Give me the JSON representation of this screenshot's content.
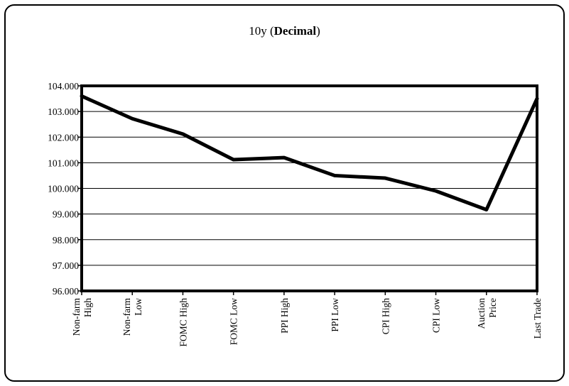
{
  "chart_data": {
    "type": "line",
    "title_prefix": "10y (",
    "title_bold": "Decimal",
    "title_suffix": ")",
    "categories": [
      [
        "Non-farm",
        "High"
      ],
      [
        "Non-farm",
        "Low"
      ],
      [
        "FOMC High"
      ],
      [
        "FOMC Low"
      ],
      [
        "PPI High"
      ],
      [
        "PPI Low"
      ],
      [
        "CPI High"
      ],
      [
        "CPI Low"
      ],
      [
        "Auction",
        "Price"
      ],
      [
        "Last Trade"
      ]
    ],
    "values": [
      103.6,
      102.72,
      102.12,
      101.12,
      101.2,
      100.5,
      100.4,
      99.9,
      99.17,
      103.5
    ],
    "ylim": [
      96,
      104
    ],
    "yticks": [
      "96.000",
      "97.000",
      "98.000",
      "99.000",
      "100.000",
      "101.000",
      "102.000",
      "103.000",
      "104.000"
    ],
    "ytick_values": [
      96,
      97,
      98,
      99,
      100,
      101,
      102,
      103,
      104
    ],
    "grid": true,
    "line_color": "#000000"
  }
}
